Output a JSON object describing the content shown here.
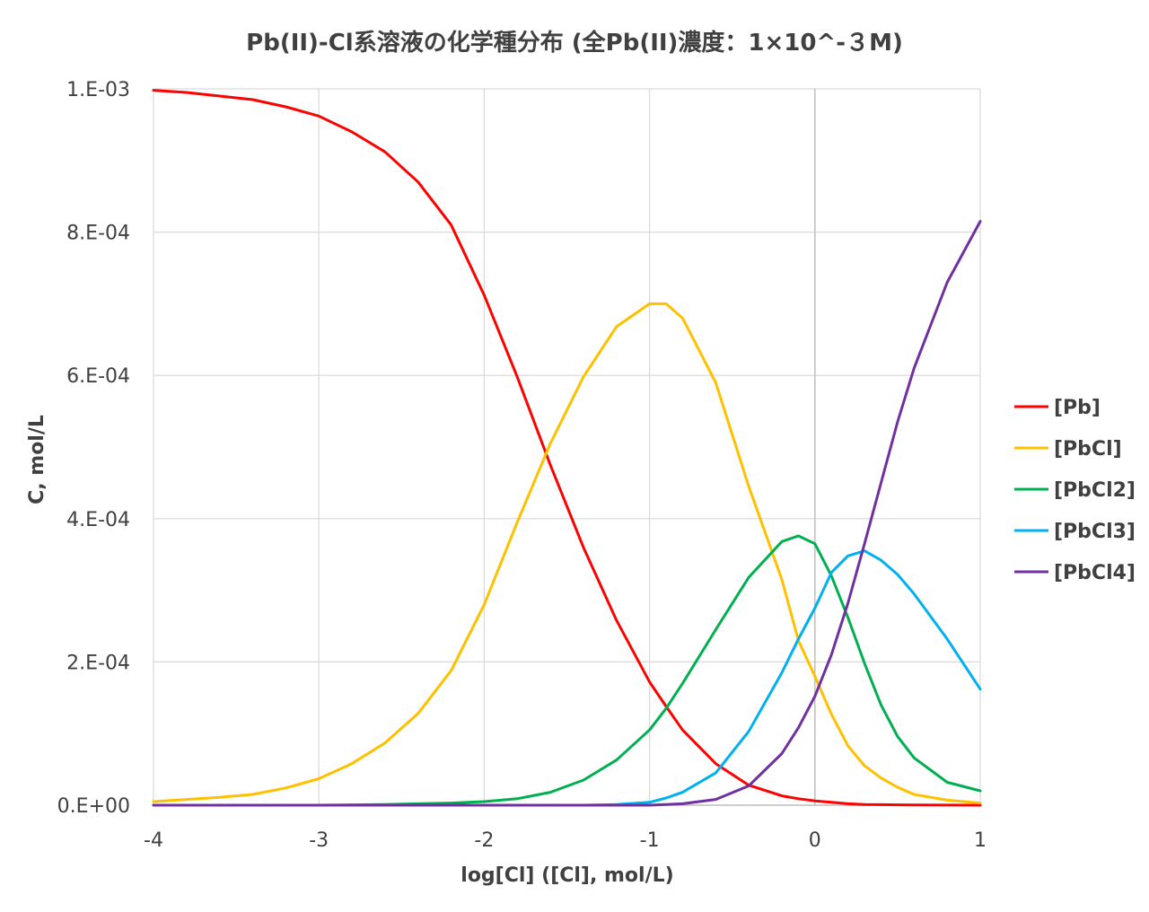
{
  "chart_data": {
    "type": "line",
    "title": "Pb(II)-Cl系溶液の化学種分布 (全Pb(II)濃度：1×10^-３M)",
    "xlabel": "log[Cl]  ([Cl], mol/L)",
    "ylabel": "C, mol/L",
    "xlim": [
      -4,
      1
    ],
    "ylim": [
      0,
      0.001
    ],
    "x_ticks": [
      -4,
      -3,
      -2,
      -1,
      0,
      1
    ],
    "x_tick_labels": [
      "-4",
      "-3",
      "-2",
      "-1",
      "0",
      "1"
    ],
    "y_ticks": [
      0,
      0.0002,
      0.0004,
      0.0006,
      0.0008,
      0.001
    ],
    "y_tick_labels": [
      "0.E+00",
      "2.E-04",
      "4.E-04",
      "6.E-04",
      "8.E-04",
      "1.E-03"
    ],
    "grid": true,
    "legend_position": "right",
    "x": [
      -4,
      -3.8,
      -3.6,
      -3.4,
      -3.2,
      -3,
      -2.8,
      -2.6,
      -2.4,
      -2.2,
      -2,
      -1.8,
      -1.6,
      -1.4,
      -1.2,
      -1,
      -0.9,
      -0.8,
      -0.6,
      -0.4,
      -0.2,
      -0.1,
      0,
      0.1,
      0.2,
      0.3,
      0.4,
      0.5,
      0.6,
      0.8,
      1
    ],
    "series": [
      {
        "name": "[Pb]",
        "color": "#ff0000",
        "values": [
          0.000998,
          0.000995,
          0.00099,
          0.000985,
          0.000975,
          0.000962,
          0.00094,
          0.000912,
          0.00087,
          0.00081,
          0.000712,
          0.000598,
          0.000475,
          0.00036,
          0.000258,
          0.000172,
          0.000138,
          0.000105,
          5.8e-05,
          2.8e-05,
          1.3e-05,
          9e-06,
          6e-06,
          4e-06,
          2e-06,
          1e-06,
          8e-07,
          5e-07,
          3e-07,
          1e-07,
          0
        ]
      },
      {
        "name": "[PbCl]",
        "color": "#ffc000",
        "values": [
          5e-06,
          8e-06,
          1.1e-05,
          1.5e-05,
          2.4e-05,
          3.7e-05,
          5.8e-05,
          8.7e-05,
          0.000128,
          0.000188,
          0.00028,
          0.000395,
          0.000505,
          0.000598,
          0.000668,
          0.0007,
          0.0007,
          0.00068,
          0.00059,
          0.000445,
          0.000315,
          0.00023,
          0.00018,
          0.000127,
          8.3e-05,
          5.5e-05,
          3.8e-05,
          2.5e-05,
          1.5e-05,
          7e-06,
          3e-06
        ]
      },
      {
        "name": "[PbCl2]",
        "color": "#00b050",
        "values": [
          0,
          0,
          0,
          0,
          0,
          0,
          5e-07,
          1e-06,
          2e-06,
          3e-06,
          5e-06,
          9e-06,
          1.8e-05,
          3.5e-05,
          6.3e-05,
          0.000105,
          0.000135,
          0.00017,
          0.000245,
          0.000318,
          0.000368,
          0.000376,
          0.000365,
          0.00032,
          0.000262,
          0.000198,
          0.00014,
          9.6e-05,
          6.6e-05,
          3.2e-05,
          2e-05
        ]
      },
      {
        "name": "[PbCl3]",
        "color": "#00b0f0",
        "values": [
          0,
          0,
          0,
          0,
          0,
          0,
          0,
          0,
          0,
          0,
          0,
          0,
          0,
          0,
          1e-06,
          4e-06,
          1e-05,
          1.8e-05,
          4.5e-05,
          0.000103,
          0.000185,
          0.000232,
          0.000275,
          0.000325,
          0.000348,
          0.000355,
          0.000342,
          0.000322,
          0.000295,
          0.000232,
          0.000162
        ]
      },
      {
        "name": "[PbCl4]",
        "color": "#7030a0",
        "values": [
          0,
          0,
          0,
          0,
          0,
          0,
          0,
          0,
          0,
          0,
          0,
          0,
          0,
          0,
          0,
          0,
          1e-06,
          2e-06,
          8e-06,
          2.7e-05,
          7.2e-05,
          0.000108,
          0.000152,
          0.00021,
          0.000282,
          0.000365,
          0.00045,
          0.000535,
          0.00061,
          0.00073,
          0.000815
        ]
      }
    ]
  }
}
